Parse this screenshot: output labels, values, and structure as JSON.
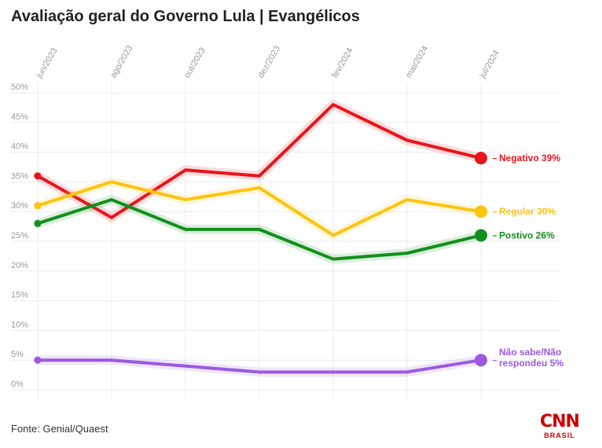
{
  "title": "Avaliação geral do Governo Lula | Evangélicos",
  "source": "Fonte: Genial/Quaest",
  "logo": {
    "main": "CNN",
    "sub": "BRASIL"
  },
  "chart_data": {
    "type": "line",
    "title": "Avaliação geral do Governo Lula | Evangélicos",
    "x": [
      "jun/2023",
      "ago/2023",
      "out/2023",
      "dez/2023",
      "fev/2024",
      "mai/2024",
      "jul/2024"
    ],
    "ylim": [
      0,
      50
    ],
    "yticks": [
      "0%",
      "5%",
      "10%",
      "15%",
      "20%",
      "25%",
      "30%",
      "35%",
      "40%",
      "45%",
      "50%"
    ],
    "grid": true,
    "series": [
      {
        "name": "Negativo",
        "label_lines": [
          "Negativo 39%"
        ],
        "color": "#e8141b",
        "values": [
          36,
          29,
          37,
          36,
          48,
          42,
          39
        ]
      },
      {
        "name": "Regular",
        "label_lines": [
          "Regular 30%"
        ],
        "color": "#fcc40f",
        "values": [
          31,
          35,
          32,
          34,
          26,
          32,
          30
        ]
      },
      {
        "name": "Postivo",
        "label_lines": [
          "Postivo 26%"
        ],
        "color": "#11901c",
        "values": [
          28,
          32,
          27,
          27,
          22,
          23,
          26
        ]
      },
      {
        "name": "Não sabe/Não respondeu",
        "label_lines": [
          "Não sabe/Não",
          "respondeu 5%"
        ],
        "color": "#9b59e0",
        "values": [
          5,
          5,
          4,
          3,
          3,
          3,
          5
        ]
      }
    ]
  }
}
